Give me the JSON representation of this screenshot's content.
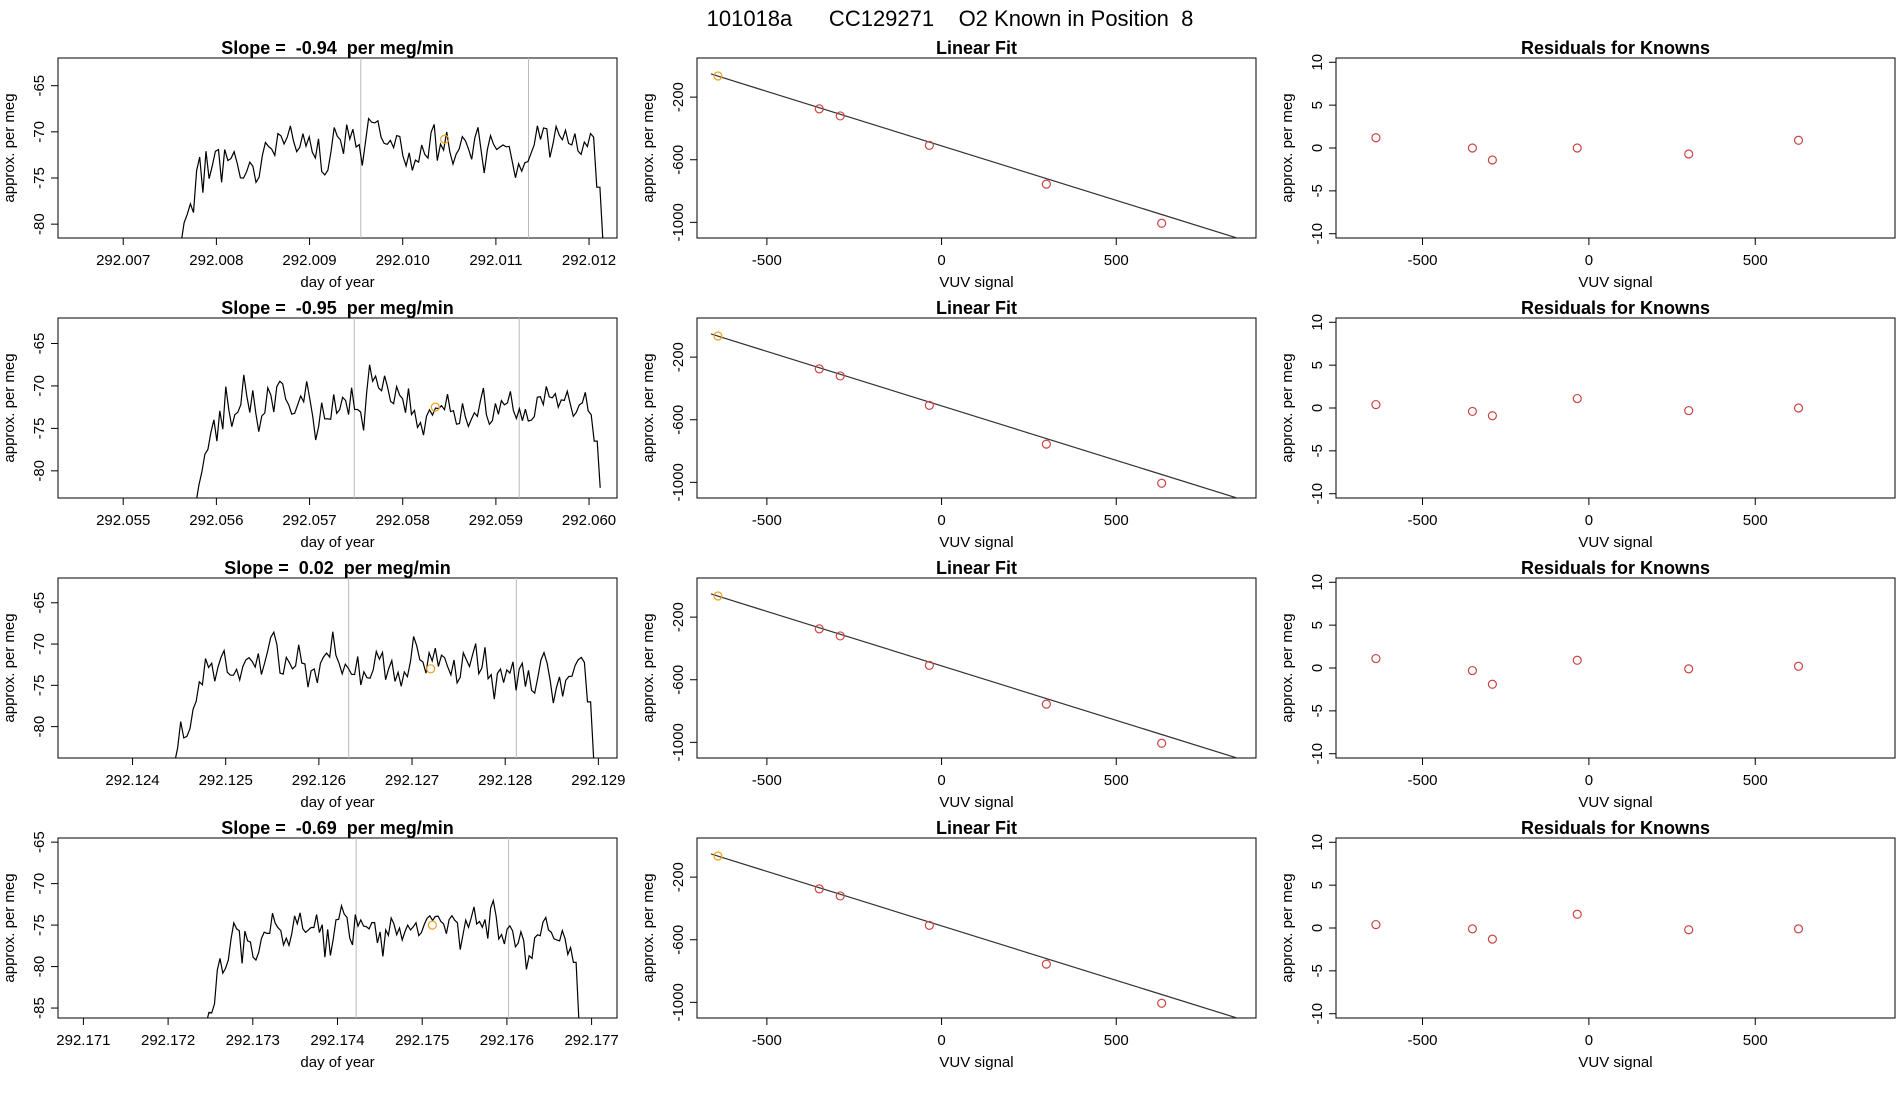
{
  "figure_title": "101018a      CC129271    O2 Known in Position  8",
  "colors": {
    "trace": "#000000",
    "marker": "#f0a020",
    "known_points": "#cc4444",
    "fit_line": "#333333",
    "divider": "#bbbbbb"
  },
  "chart_data": [
    {
      "type": "line",
      "panel": "trace",
      "row": 0,
      "title": "Slope =  -0.94  per meg/min",
      "xlabel": "day of year",
      "ylabel": "approx. per meg",
      "xlim": [
        292.0063,
        292.0123
      ],
      "ylim": [
        -81.5,
        -62
      ],
      "xticks": [
        "292.007",
        "292.008",
        "292.009",
        "292.010",
        "292.011",
        "292.012"
      ],
      "yticks": [
        -65,
        -70,
        -75,
        -80
      ],
      "start": 292.00762,
      "end": 292.01215,
      "base_level": -72.0,
      "amplitude": 3.0,
      "ramp_min": -79,
      "final_value": -82.0,
      "seed": 11,
      "vlines": [
        292.00955,
        292.01135
      ],
      "marker": {
        "x": 292.01045,
        "y": -70.8
      }
    },
    {
      "type": "scatter",
      "panel": "fit",
      "row": 0,
      "title": "Linear Fit",
      "xlabel": "VUV signal",
      "ylabel": "approx. per meg",
      "xlim": [
        -700,
        900
      ],
      "ylim": [
        -1100,
        50
      ],
      "xticks": [
        -500,
        0,
        500
      ],
      "yticks": [
        -200,
        -600,
        -1000
      ],
      "points": [
        [
          -640,
          -65
        ],
        [
          -350,
          -275
        ],
        [
          -290,
          -320
        ],
        [
          -35,
          -508
        ],
        [
          300,
          -756
        ],
        [
          630,
          -1006
        ]
      ],
      "fit_line": [
        [
          -660,
          -52
        ],
        [
          860,
          -1110
        ]
      ]
    },
    {
      "type": "scatter",
      "panel": "residuals",
      "row": 0,
      "title": "Residuals for Knowns",
      "xlabel": "VUV signal",
      "ylabel": "approx. per meg",
      "xlim": [
        -760,
        920
      ],
      "ylim": [
        -10.5,
        10.5
      ],
      "xticks": [
        -500,
        0,
        500
      ],
      "yticks": [
        10,
        5,
        0,
        -5,
        -10
      ],
      "points": [
        [
          -640,
          1.2
        ],
        [
          -350,
          0.0
        ],
        [
          -290,
          -1.4
        ],
        [
          -35,
          0.0
        ],
        [
          300,
          -0.7
        ],
        [
          630,
          0.9
        ]
      ]
    },
    {
      "type": "line",
      "panel": "trace",
      "row": 1,
      "title": "Slope =  -0.95  per meg/min",
      "xlabel": "day of year",
      "ylabel": "approx. per meg",
      "xlim": [
        292.0543,
        292.0603
      ],
      "ylim": [
        -83.2,
        -62
      ],
      "xticks": [
        "292.055",
        "292.056",
        "292.057",
        "292.058",
        "292.059",
        "292.060"
      ],
      "yticks": [
        -65,
        -70,
        -75,
        -80
      ],
      "start": 292.05578,
      "end": 292.06012,
      "base_level": -72.5,
      "amplitude": 3.0,
      "ramp_min": -81,
      "final_value": -82.0,
      "seed": 23,
      "vlines": [
        292.05748,
        292.05925
      ],
      "marker": {
        "x": 292.05835,
        "y": -72.5
      }
    },
    {
      "type": "scatter",
      "panel": "fit",
      "row": 1,
      "title": "Linear Fit",
      "xlabel": "VUV signal",
      "ylabel": "approx. per meg",
      "xlim": [
        -700,
        900
      ],
      "ylim": [
        -1100,
        50
      ],
      "xticks": [
        -500,
        0,
        500
      ],
      "yticks": [
        -200,
        -600,
        -1000
      ],
      "points": [
        [
          -640,
          -65
        ],
        [
          -350,
          -275
        ],
        [
          -290,
          -320
        ],
        [
          -35,
          -508
        ],
        [
          300,
          -756
        ],
        [
          630,
          -1006
        ]
      ],
      "fit_line": [
        [
          -660,
          -52
        ],
        [
          860,
          -1110
        ]
      ]
    },
    {
      "type": "scatter",
      "panel": "residuals",
      "row": 1,
      "title": "Residuals for Knowns",
      "xlabel": "VUV signal",
      "ylabel": "approx. per meg",
      "xlim": [
        -760,
        920
      ],
      "ylim": [
        -10.5,
        10.5
      ],
      "xticks": [
        -500,
        0,
        500
      ],
      "yticks": [
        10,
        5,
        0,
        -5,
        -10
      ],
      "points": [
        [
          -640,
          0.4
        ],
        [
          -350,
          -0.4
        ],
        [
          -290,
          -0.9
        ],
        [
          -35,
          1.1
        ],
        [
          300,
          -0.3
        ],
        [
          630,
          0.0
        ]
      ]
    },
    {
      "type": "line",
      "panel": "trace",
      "row": 2,
      "title": "Slope =  0.02  per meg/min",
      "xlabel": "day of year",
      "ylabel": "approx. per meg",
      "xlim": [
        292.1232,
        292.1292
      ],
      "ylim": [
        -83.8,
        -62
      ],
      "xticks": [
        "292.124",
        "292.125",
        "292.126",
        "292.127",
        "292.128",
        "292.129"
      ],
      "yticks": [
        -65,
        -70,
        -75,
        -80
      ],
      "start": 292.12445,
      "end": 292.12895,
      "base_level": -73.0,
      "amplitude": 3.0,
      "ramp_min": -82,
      "final_value": -84.0,
      "seed": 37,
      "vlines": [
        292.12632,
        292.12812
      ],
      "marker": {
        "x": 292.1272,
        "y": -73.0
      }
    },
    {
      "type": "scatter",
      "panel": "fit",
      "row": 2,
      "title": "Linear Fit",
      "xlabel": "VUV signal",
      "ylabel": "approx. per meg",
      "xlim": [
        -700,
        900
      ],
      "ylim": [
        -1100,
        50
      ],
      "xticks": [
        -500,
        0,
        500
      ],
      "yticks": [
        -200,
        -600,
        -1000
      ],
      "points": [
        [
          -640,
          -65
        ],
        [
          -350,
          -275
        ],
        [
          -290,
          -320
        ],
        [
          -35,
          -508
        ],
        [
          300,
          -756
        ],
        [
          630,
          -1006
        ]
      ],
      "fit_line": [
        [
          -660,
          -52
        ],
        [
          860,
          -1110
        ]
      ]
    },
    {
      "type": "scatter",
      "panel": "residuals",
      "row": 2,
      "title": "Residuals for Knowns",
      "xlabel": "VUV signal",
      "ylabel": "approx. per meg",
      "xlim": [
        -760,
        920
      ],
      "ylim": [
        -10.5,
        10.5
      ],
      "xticks": [
        -500,
        0,
        500
      ],
      "yticks": [
        10,
        5,
        0,
        -5,
        -10
      ],
      "points": [
        [
          -640,
          1.1
        ],
        [
          -350,
          -0.3
        ],
        [
          -290,
          -1.9
        ],
        [
          -35,
          0.9
        ],
        [
          300,
          -0.1
        ],
        [
          630,
          0.2
        ]
      ]
    },
    {
      "type": "line",
      "panel": "trace",
      "row": 3,
      "title": "Slope =  -0.69  per meg/min",
      "xlabel": "day of year",
      "ylabel": "approx. per meg",
      "xlim": [
        292.1707,
        292.1773
      ],
      "ylim": [
        -86.2,
        -64.5
      ],
      "xticks": [
        "292.171",
        "292.172",
        "292.173",
        "292.174",
        "292.175",
        "292.176",
        "292.177"
      ],
      "yticks": [
        -65,
        -70,
        -75,
        -80,
        -85
      ],
      "start": 292.17245,
      "end": 292.17685,
      "base_level": -75.5,
      "amplitude": 3.0,
      "ramp_min": -85,
      "final_value": -86.5,
      "seed": 53,
      "vlines": [
        292.17422,
        292.17602
      ],
      "marker": {
        "x": 292.17512,
        "y": -75.0
      }
    },
    {
      "type": "scatter",
      "panel": "fit",
      "row": 3,
      "title": "Linear Fit",
      "xlabel": "VUV signal",
      "ylabel": "approx. per meg",
      "xlim": [
        -700,
        900
      ],
      "ylim": [
        -1100,
        50
      ],
      "xticks": [
        -500,
        0,
        500
      ],
      "yticks": [
        -200,
        -600,
        -1000
      ],
      "points": [
        [
          -640,
          -65
        ],
        [
          -350,
          -275
        ],
        [
          -290,
          -320
        ],
        [
          -35,
          -508
        ],
        [
          300,
          -756
        ],
        [
          630,
          -1006
        ]
      ],
      "fit_line": [
        [
          -660,
          -52
        ],
        [
          860,
          -1110
        ]
      ]
    },
    {
      "type": "scatter",
      "panel": "residuals",
      "row": 3,
      "title": "Residuals for Knowns",
      "xlabel": "VUV signal",
      "ylabel": "approx. per meg",
      "xlim": [
        -760,
        920
      ],
      "ylim": [
        -10.5,
        10.5
      ],
      "xticks": [
        -500,
        0,
        500
      ],
      "yticks": [
        10,
        5,
        0,
        -5,
        -10
      ],
      "points": [
        [
          -640,
          0.4
        ],
        [
          -350,
          -0.1
        ],
        [
          -290,
          -1.3
        ],
        [
          -35,
          1.6
        ],
        [
          300,
          -0.2
        ],
        [
          630,
          -0.1
        ]
      ]
    }
  ]
}
